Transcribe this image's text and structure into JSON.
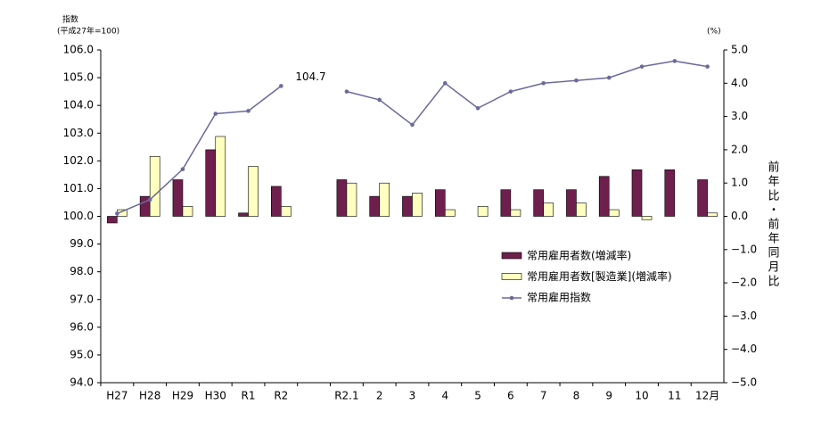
{
  "chart_data": {
    "type": "bar-line",
    "y_axis_title": "指数",
    "y_axis_subtitle": "(平成27年=100)",
    "y2_axis_unit": "(%)",
    "y2_axis_title": "前年比・前年同月比",
    "categories": [
      "H27",
      "H28",
      "H29",
      "H30",
      "R1",
      "R2",
      null,
      "R2.1",
      "2",
      "3",
      "4",
      "5",
      "6",
      "7",
      "8",
      "9",
      "10",
      "11",
      "12月"
    ],
    "series": [
      {
        "name": "常用雇用者数(増減率)",
        "kind": "bar",
        "axis": "y2",
        "color": "#6e1f4e",
        "values": [
          -0.2,
          0.6,
          1.1,
          2.0,
          0.1,
          0.9,
          null,
          1.1,
          0.6,
          0.6,
          0.8,
          0.0,
          0.8,
          0.8,
          0.8,
          1.2,
          1.4,
          1.4,
          1.1
        ]
      },
      {
        "name": "常用雇用者数[製造業](増減率)",
        "kind": "bar",
        "axis": "y2",
        "color": "#ffffc0",
        "values": [
          0.2,
          1.8,
          0.3,
          2.4,
          1.5,
          0.3,
          null,
          1.0,
          1.0,
          0.7,
          0.2,
          0.3,
          0.2,
          0.4,
          0.4,
          0.2,
          -0.1,
          0.0,
          0.1
        ]
      },
      {
        "name": "常用雇用指数",
        "kind": "line",
        "axis": "y",
        "color": "#6a6a9a",
        "values": [
          100.1,
          100.6,
          101.7,
          103.7,
          103.8,
          104.7,
          null,
          104.5,
          104.2,
          103.3,
          104.8,
          103.9,
          104.5,
          104.8,
          104.9,
          105.0,
          105.4,
          105.6,
          105.4
        ],
        "value_labels": [
          null,
          null,
          null,
          null,
          null,
          "104.7",
          null,
          null,
          null,
          null,
          null,
          null,
          null,
          null,
          null,
          null,
          null,
          null,
          null
        ]
      }
    ],
    "ylim": [
      94,
      106
    ],
    "yticks": [
      {
        "value": 94,
        "label": "94.0"
      },
      {
        "value": 95,
        "label": "95.0"
      },
      {
        "value": 96,
        "label": "96.0"
      },
      {
        "value": 97,
        "label": "97.0"
      },
      {
        "value": 98,
        "label": "98.0"
      },
      {
        "value": 99,
        "label": "99.0"
      },
      {
        "value": 100,
        "label": "100.0"
      },
      {
        "value": 101,
        "label": "101.0"
      },
      {
        "value": 102,
        "label": "102.0"
      },
      {
        "value": 103,
        "label": "103.0"
      },
      {
        "value": 104,
        "label": "104.0"
      },
      {
        "value": 105,
        "label": "105.0"
      },
      {
        "value": 106,
        "label": "106.0"
      }
    ],
    "y2lim": [
      -5,
      5
    ],
    "y2ticks": [
      {
        "value": -5,
        "label": "−5.0"
      },
      {
        "value": -4,
        "label": "−4.0"
      },
      {
        "value": -3,
        "label": "−3.0"
      },
      {
        "value": -2,
        "label": "−2.0"
      },
      {
        "value": -1,
        "label": "−1.0"
      },
      {
        "value": 0,
        "label": "0.0"
      },
      {
        "value": 1,
        "label": "1.0"
      },
      {
        "value": 2,
        "label": "2.0"
      },
      {
        "value": 3,
        "label": "3.0"
      },
      {
        "value": 4,
        "label": "4.0"
      },
      {
        "value": 5,
        "label": "5.0"
      }
    ],
    "grid": false,
    "legend": "right"
  }
}
